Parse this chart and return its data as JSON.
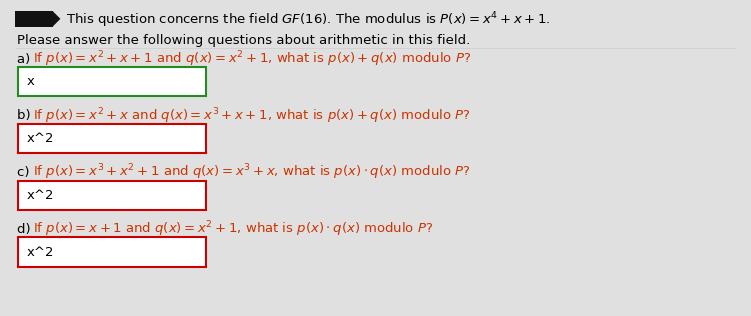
{
  "bg_color": "#e0e0e0",
  "panel_bg": "#f0f0f0",
  "header_line1": "This question concerns the field $GF(16)$. The modulus is $P(x) = x^4 + x + 1$.",
  "subheader": "Please answer the following questions about arithmetic in this field.",
  "questions": [
    {
      "label": "a) ",
      "q_parts": [
        {
          "text": "If ",
          "color": "#000000",
          "style": "normal"
        },
        {
          "text": "$p(x) = x^2 + x + 1$",
          "color": "#cc3300",
          "style": "math"
        },
        {
          "text": " and ",
          "color": "#000000",
          "style": "normal"
        },
        {
          "text": "$q(x) = x^2 + 1$",
          "color": "#cc3300",
          "style": "math"
        },
        {
          "text": ", what is ",
          "color": "#000000",
          "style": "normal"
        },
        {
          "text": "$p(x) + q(x)$",
          "color": "#cc3300",
          "style": "math"
        },
        {
          "text": " modulo ",
          "color": "#000000",
          "style": "normal"
        },
        {
          "text": "$P$",
          "color": "#cc3300",
          "style": "math"
        },
        {
          "text": "?",
          "color": "#000000",
          "style": "normal"
        }
      ],
      "answer": "x",
      "box_edge_color": "#228B22"
    },
    {
      "label": "b) ",
      "q_parts": [
        {
          "text": "If ",
          "color": "#000000",
          "style": "normal"
        },
        {
          "text": "$p(x) = x^2 + x$",
          "color": "#cc3300",
          "style": "math"
        },
        {
          "text": " and ",
          "color": "#000000",
          "style": "normal"
        },
        {
          "text": "$q(x) = x^3 + x + 1$",
          "color": "#cc3300",
          "style": "math"
        },
        {
          "text": ", what is ",
          "color": "#000000",
          "style": "normal"
        },
        {
          "text": "$p(x) + q(x)$",
          "color": "#cc3300",
          "style": "math"
        },
        {
          "text": " modulo ",
          "color": "#000000",
          "style": "normal"
        },
        {
          "text": "$P$",
          "color": "#cc3300",
          "style": "math"
        },
        {
          "text": "?",
          "color": "#000000",
          "style": "normal"
        }
      ],
      "answer": "x^2",
      "box_edge_color": "#cc0000"
    },
    {
      "label": "c) ",
      "q_parts": [
        {
          "text": "If ",
          "color": "#000000",
          "style": "normal"
        },
        {
          "text": "$p(x) = x^3 + x^2 + 1$",
          "color": "#cc3300",
          "style": "math"
        },
        {
          "text": " and ",
          "color": "#000000",
          "style": "normal"
        },
        {
          "text": "$q(x) = x^3 + x$",
          "color": "#cc3300",
          "style": "math"
        },
        {
          "text": ", what is ",
          "color": "#000000",
          "style": "normal"
        },
        {
          "text": "$p(x) \\cdot q(x)$",
          "color": "#cc3300",
          "style": "math"
        },
        {
          "text": " modulo ",
          "color": "#000000",
          "style": "normal"
        },
        {
          "text": "$P$",
          "color": "#cc3300",
          "style": "math"
        },
        {
          "text": "?",
          "color": "#000000",
          "style": "normal"
        }
      ],
      "answer": "x^2",
      "box_edge_color": "#cc0000"
    },
    {
      "label": "d) ",
      "q_parts": [
        {
          "text": "If ",
          "color": "#000000",
          "style": "normal"
        },
        {
          "text": "$p(x) = x + 1$",
          "color": "#cc3300",
          "style": "math"
        },
        {
          "text": " and ",
          "color": "#000000",
          "style": "normal"
        },
        {
          "text": "$q(x) = x^2 + 1$",
          "color": "#cc3300",
          "style": "math"
        },
        {
          "text": ", what is ",
          "color": "#000000",
          "style": "normal"
        },
        {
          "text": "$p(x) \\cdot q(x)$",
          "color": "#cc3300",
          "style": "math"
        },
        {
          "text": " modulo ",
          "color": "#000000",
          "style": "normal"
        },
        {
          "text": "$P$",
          "color": "#cc3300",
          "style": "math"
        },
        {
          "text": "?",
          "color": "#000000",
          "style": "normal"
        }
      ],
      "answer": "x^2",
      "box_edge_color": "#cc0000"
    }
  ],
  "font_size": 9.5,
  "figsize": [
    7.51,
    3.16
  ],
  "dpi": 100
}
